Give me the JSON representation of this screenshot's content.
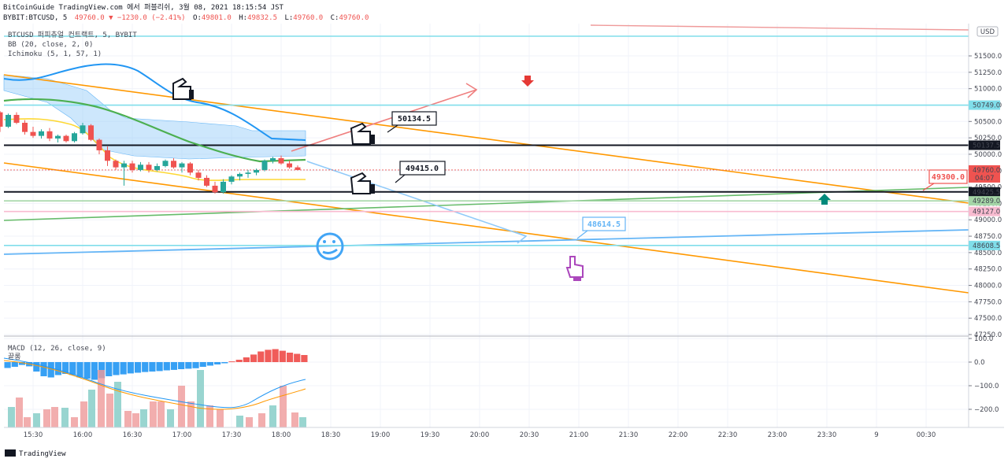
{
  "header": {
    "line1": "BitCoinGuide TradingView.com 에서 퍼블리쉬, 3월 08, 2021 18:15:54 JST",
    "sym": "BYBIT:BTCUSD, 5",
    "last": "49760.0",
    "change": "−1230.0 (−2.41%)",
    "o_label": "O:",
    "o": "49801.0",
    "h_label": "H:",
    "h": "49832.5",
    "l_label": "L:",
    "l": "49760.0",
    "c_label": "C:",
    "c": "49760.0"
  },
  "legend": {
    "symbol": "BTCUSD 퍼피츄얼 컨트랙트, 5, BYBIT",
    "bb": "BB (20, close, 2, 0)",
    "ichimoku": "Ichimoku (5, 1, 57, 1)",
    "macd": "MACD (12, 26, close, 9)",
    "macd_extra": "끝롱"
  },
  "currency": "USD",
  "brand": "TradingView",
  "callouts": {
    "a": "50134.5",
    "b": "49415.0",
    "c": "48614.5",
    "d": "49300.0"
  },
  "price_badges": [
    {
      "value": "50749.0",
      "price": 50749.0,
      "kind": "level",
      "color": "#80deea"
    },
    {
      "value": "50137.5",
      "price": 50137.5,
      "kind": "black",
      "color": "#131722"
    },
    {
      "value": "49425.5",
      "price": 49425.5,
      "kind": "black",
      "color": "#131722"
    },
    {
      "value": "49289.0",
      "price": 49289.0,
      "kind": "level",
      "color": "#a5d6a7"
    },
    {
      "value": "49127.0",
      "price": 49127.0,
      "kind": "level",
      "color": "#f8bbd0"
    },
    {
      "value": "48608.5",
      "price": 48608.5,
      "kind": "level",
      "color": "#80deea"
    }
  ],
  "last_price_badge": {
    "value": "49760.0",
    "countdown": "04:07",
    "color": "#ef5350"
  },
  "colors": {
    "up": "#26a69a",
    "down": "#ef5350",
    "bb_band": "#2196f3",
    "bb_basis": "#ff9800",
    "ichimoku": "#4caf50",
    "cloud": "#90caf9",
    "trend": "#ff9800",
    "grid": "#f0f3fa"
  },
  "chart_data": [
    {
      "type": "candlestick",
      "symbol": "BYBIT:BTCUSD",
      "interval_minutes": 5,
      "y_ticks": [
        51500,
        51250,
        51000,
        50750,
        50500,
        50250,
        50000,
        49750,
        49500,
        49250,
        49000,
        48750,
        48500,
        48250,
        48000,
        47750,
        47500,
        47250
      ],
      "y_tick_labels": [
        "51500.0",
        "51250.0",
        "51000.0",
        "50750.0",
        "50500.0",
        "50250.0",
        "50000.0",
        "49750.0",
        "49500.0",
        "49250.0",
        "49000.0",
        "48750.0",
        "48500.0",
        "48250.0",
        "48000.0",
        "47750.0",
        "47500.0",
        "47250.0"
      ],
      "x_tick_labels": [
        "15:30",
        "16:00",
        "16:30",
        "17:00",
        "17:30",
        "18:00",
        "18:30",
        "19:00",
        "19:30",
        "20:00",
        "20:30",
        "21:00",
        "21:30",
        "22:00",
        "22:30",
        "23:00",
        "23:30",
        "9",
        "00:30"
      ],
      "ylim": [
        47230,
        51800
      ],
      "candles": [
        {
          "t": "15:05",
          "o": 50600,
          "h": 50700,
          "l": 50520,
          "c": 50640
        },
        {
          "t": "15:10",
          "o": 50640,
          "h": 50660,
          "l": 50340,
          "c": 50420
        },
        {
          "t": "15:15",
          "o": 50420,
          "h": 50620,
          "l": 50400,
          "c": 50600
        },
        {
          "t": "15:20",
          "o": 50600,
          "h": 50640,
          "l": 50460,
          "c": 50480
        },
        {
          "t": "15:25",
          "o": 50480,
          "h": 50520,
          "l": 50300,
          "c": 50340
        },
        {
          "t": "15:30",
          "o": 50340,
          "h": 50420,
          "l": 50250,
          "c": 50280
        },
        {
          "t": "15:35",
          "o": 50280,
          "h": 50380,
          "l": 50240,
          "c": 50350
        },
        {
          "t": "15:40",
          "o": 50350,
          "h": 50400,
          "l": 50200,
          "c": 50240
        },
        {
          "t": "15:45",
          "o": 50240,
          "h": 50300,
          "l": 50180,
          "c": 50280
        },
        {
          "t": "15:50",
          "o": 50280,
          "h": 50300,
          "l": 50180,
          "c": 50200
        },
        {
          "t": "15:55",
          "o": 50200,
          "h": 50340,
          "l": 50180,
          "c": 50320
        },
        {
          "t": "16:00",
          "o": 50320,
          "h": 50480,
          "l": 50300,
          "c": 50440
        },
        {
          "t": "16:05",
          "o": 50440,
          "h": 50460,
          "l": 50200,
          "c": 50220
        },
        {
          "t": "16:10",
          "o": 50220,
          "h": 50240,
          "l": 50000,
          "c": 50060
        },
        {
          "t": "16:15",
          "o": 50060,
          "h": 50120,
          "l": 49820,
          "c": 49900
        },
        {
          "t": "16:20",
          "o": 49900,
          "h": 49920,
          "l": 49760,
          "c": 49800
        },
        {
          "t": "16:25",
          "o": 49800,
          "h": 49900,
          "l": 49520,
          "c": 49860
        },
        {
          "t": "16:30",
          "o": 49860,
          "h": 49900,
          "l": 49720,
          "c": 49760
        },
        {
          "t": "16:35",
          "o": 49760,
          "h": 49880,
          "l": 49740,
          "c": 49840
        },
        {
          "t": "16:40",
          "o": 49840,
          "h": 49880,
          "l": 49720,
          "c": 49760
        },
        {
          "t": "16:45",
          "o": 49760,
          "h": 49860,
          "l": 49740,
          "c": 49820
        },
        {
          "t": "16:50",
          "o": 49820,
          "h": 49920,
          "l": 49800,
          "c": 49900
        },
        {
          "t": "16:55",
          "o": 49900,
          "h": 49940,
          "l": 49780,
          "c": 49800
        },
        {
          "t": "17:00",
          "o": 49800,
          "h": 49880,
          "l": 49720,
          "c": 49860
        },
        {
          "t": "17:05",
          "o": 49860,
          "h": 49880,
          "l": 49680,
          "c": 49720
        },
        {
          "t": "17:10",
          "o": 49720,
          "h": 49760,
          "l": 49600,
          "c": 49640
        },
        {
          "t": "17:15",
          "o": 49640,
          "h": 49680,
          "l": 49500,
          "c": 49520
        },
        {
          "t": "17:20",
          "o": 49520,
          "h": 49580,
          "l": 49400,
          "c": 49420
        },
        {
          "t": "17:25",
          "o": 49420,
          "h": 49620,
          "l": 49400,
          "c": 49580
        },
        {
          "t": "17:30",
          "o": 49580,
          "h": 49680,
          "l": 49540,
          "c": 49660
        },
        {
          "t": "17:35",
          "o": 49660,
          "h": 49720,
          "l": 49600,
          "c": 49700
        },
        {
          "t": "17:40",
          "o": 49700,
          "h": 49760,
          "l": 49640,
          "c": 49720
        },
        {
          "t": "17:45",
          "o": 49720,
          "h": 49780,
          "l": 49680,
          "c": 49760
        },
        {
          "t": "17:50",
          "o": 49760,
          "h": 49920,
          "l": 49740,
          "c": 49900
        },
        {
          "t": "17:55",
          "o": 49900,
          "h": 49960,
          "l": 49860,
          "c": 49940
        },
        {
          "t": "18:00",
          "o": 49940,
          "h": 49980,
          "l": 49840,
          "c": 49860
        },
        {
          "t": "18:05",
          "o": 49860,
          "h": 49900,
          "l": 49780,
          "c": 49800
        },
        {
          "t": "18:10",
          "o": 49800,
          "h": 49830,
          "l": 49760,
          "c": 49760
        }
      ]
    },
    {
      "type": "bar",
      "name": "MACD",
      "y_ticks": [
        100,
        0,
        -100,
        -200
      ],
      "y_tick_labels": [
        "100.0",
        "0.0",
        "−100.0",
        "−200.0"
      ],
      "ylim": [
        -270,
        105
      ],
      "histogram": [
        -25,
        -20,
        -12,
        -18,
        -40,
        -60,
        -65,
        -55,
        -50,
        -55,
        -65,
        -70,
        -75,
        -68,
        -60,
        -55,
        -52,
        -48,
        -45,
        -42,
        -40,
        -38,
        -35,
        -33,
        -30,
        -28,
        -26,
        -20,
        -15,
        -10,
        -5,
        3,
        10,
        20,
        32,
        45,
        52,
        55,
        48,
        40,
        35,
        30
      ]
    }
  ]
}
